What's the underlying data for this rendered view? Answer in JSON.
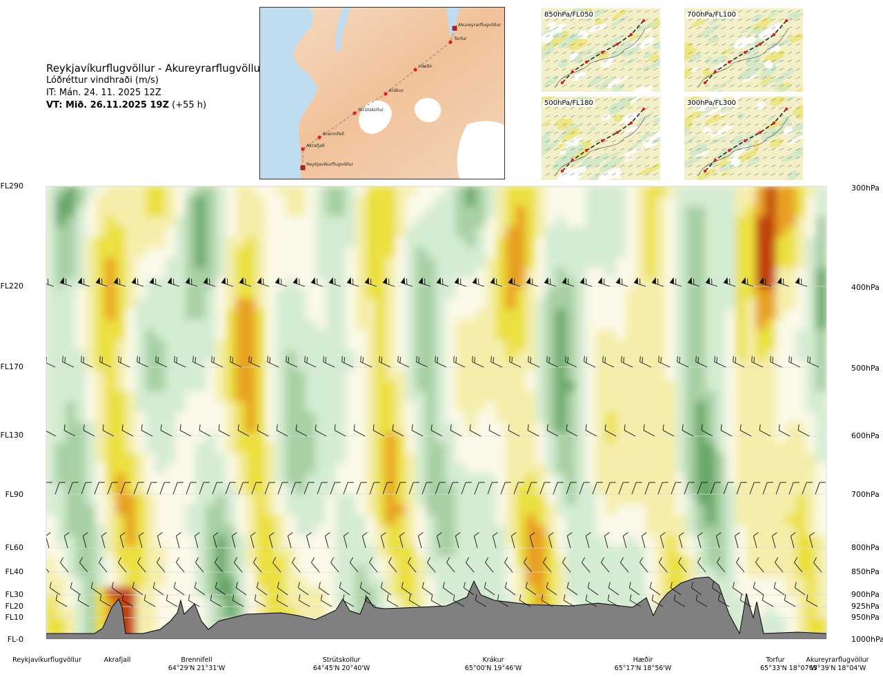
{
  "header": {
    "title": "Reykjavíkurflugvöllur - Akureyrarflugvöllur",
    "subtitle": "Lóðréttur vindhraði (m/s)",
    "issue_time": "IT: Mán. 24. 11. 2025 12Z",
    "valid_prefix": "VT: Mið. 26.11.2025 19Z",
    "valid_suffix": " (+55 h)"
  },
  "map": {
    "route_points": [
      {
        "name": "Akureyrarflugvöllur"
      },
      {
        "name": "Torfur"
      },
      {
        "name": "Hæðir"
      },
      {
        "name": "Krákur"
      },
      {
        "name": "Strútskollur"
      },
      {
        "name": "Brennifell"
      },
      {
        "name": "Akrafjall"
      },
      {
        "name": "Reykjavíkurflugvöllur"
      }
    ]
  },
  "mini_maps": [
    {
      "label": "850hPa/FL050"
    },
    {
      "label": "700hPa/FL100"
    },
    {
      "label": "500hPa/FL180"
    },
    {
      "label": "300hPa/FL300"
    }
  ],
  "levels": [
    {
      "fl": "FL290",
      "hpa": "300hPa"
    },
    {
      "fl": "FL220",
      "hpa": "400hPa"
    },
    {
      "fl": "FL170",
      "hpa": "500hPa"
    },
    {
      "fl": "FL130",
      "hpa": "600hPa"
    },
    {
      "fl": "FL90",
      "hpa": "700hPa"
    },
    {
      "fl": "FL60",
      "hpa": "800hPa"
    },
    {
      "fl": "FL40",
      "hpa": "850hPa"
    },
    {
      "fl": "FL30",
      "hpa": "900hPa"
    },
    {
      "fl": "FL20",
      "hpa": "925hPa"
    },
    {
      "fl": "FL10",
      "hpa": "950hPa"
    },
    {
      "fl": "FL-0",
      "hpa": "1000hPa"
    }
  ],
  "locations": [
    {
      "name": "Reykjavíkurflugvöllur",
      "coord": ""
    },
    {
      "name": "Akrafjall",
      "coord": ""
    },
    {
      "name": "Brennifell",
      "coord": "64°29'N 21°31'W"
    },
    {
      "name": "Strútskollur",
      "coord": "64°45'N 20°40'W"
    },
    {
      "name": "Krákur",
      "coord": "65°00'N 19°46'W"
    },
    {
      "name": "Hæðir",
      "coord": "65°17'N 18°56'W"
    },
    {
      "name": "Torfur",
      "coord": "65°33'N 18°07'W"
    },
    {
      "name": "Akureyrarflugvöllur",
      "coord": "65°39'N 18°04'W"
    }
  ],
  "colors": {
    "downdraft_weak": "#f5eeaa",
    "downdraft_mid": "#ebe040",
    "downdraft_strong": "#e8a020",
    "downdraft_extreme": "#c04010",
    "updraft_weak": "#d4ecd2",
    "updraft_mid": "#a8d0a4",
    "updraft_strong": "#6aa86a",
    "neutral": "#fbf9e8",
    "terrain": "#808080",
    "sea": "#c0dcf0",
    "land": "#f2c6a2"
  },
  "chart_data": {
    "type": "heatmap",
    "title": "Reykjavíkurflugvöllur - Akureyrarflugvöllur",
    "quantity": "Lóðréttur vindhraði (m/s)",
    "x_categories": [
      "Reykjavíkurflugvöllur",
      "Akrafjall",
      "Brennifell",
      "Strútskollur",
      "Krákur",
      "Hæðir",
      "Torfur",
      "Akureyrarflugvöllur"
    ],
    "y_levels_fl": [
      "FL-0",
      "FL10",
      "FL20",
      "FL30",
      "FL40",
      "FL60",
      "FL90",
      "FL130",
      "FL170",
      "FL220",
      "FL290"
    ],
    "y_levels_hpa": [
      "1000hPa",
      "950hPa",
      "925hPa",
      "900hPa",
      "850hPa",
      "800hPa",
      "700hPa",
      "600hPa",
      "500hPa",
      "400hPa",
      "300hPa"
    ],
    "legend": "none",
    "grid": true,
    "wind_barbs": true,
    "terrain_profile": true
  }
}
